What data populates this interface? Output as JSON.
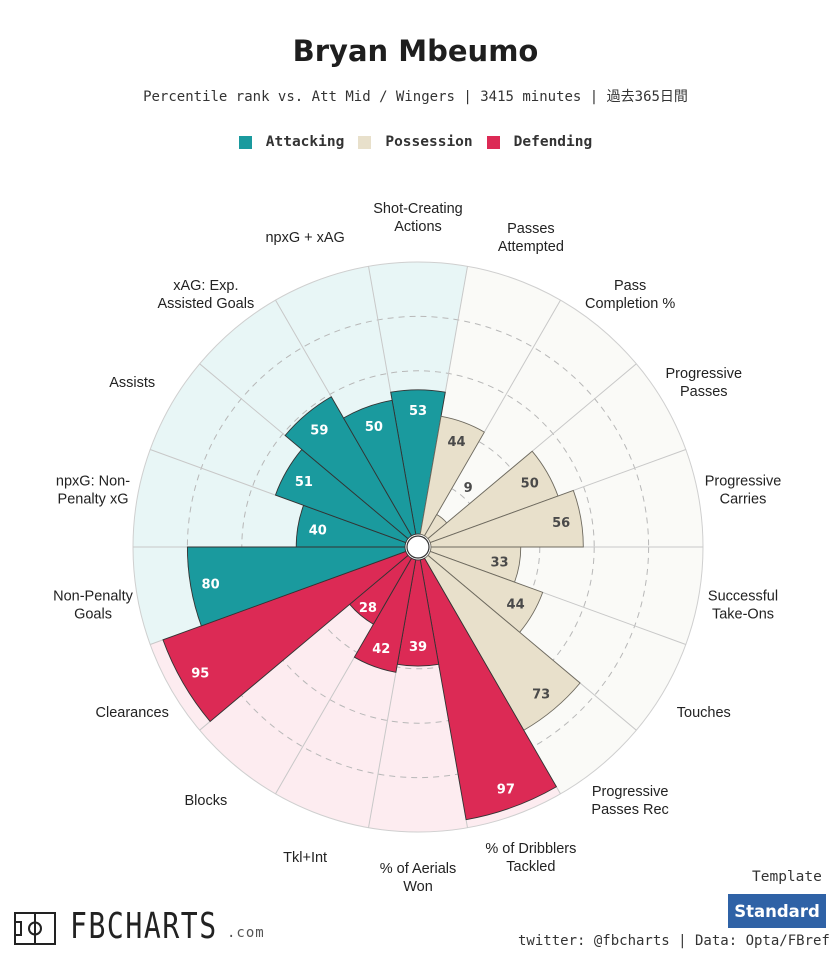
{
  "header": {
    "title": "Bryan Mbeumo",
    "subtitle": "Percentile rank vs. Att Mid / Wingers | 3415 minutes | 過去365日間"
  },
  "legend": [
    {
      "label": "Attacking",
      "color": "#1a9a9e"
    },
    {
      "label": "Possession",
      "color": "#e8e0cb"
    },
    {
      "label": "Defending",
      "color": "#dc2a55"
    }
  ],
  "chart_data": {
    "type": "radar-bar",
    "title": "Bryan Mbeumo",
    "rlim": [
      0,
      100
    ],
    "ring_ticks": [
      20,
      40,
      60,
      80
    ],
    "categories": [
      {
        "name": "Attacking",
        "color": "#1a9a9e",
        "bg": "#e8f6f6"
      },
      {
        "name": "Possession",
        "color": "#e8e0cb",
        "bg": "#fafaf7"
      },
      {
        "name": "Defending",
        "color": "#dc2a55",
        "bg": "#fdecf0"
      }
    ],
    "metrics": [
      {
        "label": "Shot-Creating Actions",
        "value": 53,
        "group": "Attacking"
      },
      {
        "label": "Passes Attempted",
        "value": 44,
        "group": "Possession"
      },
      {
        "label": "Pass Completion %",
        "value": 9,
        "group": "Possession"
      },
      {
        "label": "Progressive Passes",
        "value": 50,
        "group": "Possession"
      },
      {
        "label": "Progressive Carries",
        "value": 56,
        "group": "Possession"
      },
      {
        "label": "Successful Take-Ons",
        "value": 33,
        "group": "Possession"
      },
      {
        "label": "Touches",
        "value": 44,
        "group": "Possession"
      },
      {
        "label": "Progressive Passes Rec",
        "value": 73,
        "group": "Possession"
      },
      {
        "label": "% of Dribblers Tackled",
        "value": 97,
        "group": "Defending"
      },
      {
        "label": "% of Aerials Won",
        "value": 39,
        "group": "Defending"
      },
      {
        "label": "Tkl+Int",
        "value": 42,
        "group": "Defending"
      },
      {
        "label": "Blocks",
        "value": 28,
        "group": "Defending"
      },
      {
        "label": "Clearances",
        "value": 95,
        "group": "Defending"
      },
      {
        "label": "Non-Penalty Goals",
        "value": 80,
        "group": "Attacking"
      },
      {
        "label": "npxG: Non-Penalty xG",
        "value": 40,
        "group": "Attacking"
      },
      {
        "label": "Assists",
        "value": 51,
        "group": "Attacking"
      },
      {
        "label": "xAG: Exp. Assisted Goals",
        "value": 59,
        "group": "Attacking"
      },
      {
        "label": "npxG + xAG",
        "value": 50,
        "group": "Attacking"
      }
    ],
    "label_lines": [
      [
        "Shot-Creating",
        "Actions"
      ],
      [
        "Passes",
        "Attempted"
      ],
      [
        "Pass",
        "Completion %"
      ],
      [
        "Progressive",
        "Passes"
      ],
      [
        "Progressive",
        "Carries"
      ],
      [
        "Successful",
        "Take-Ons"
      ],
      [
        "Touches"
      ],
      [
        "Progressive",
        "Passes Rec"
      ],
      [
        "% of Dribblers",
        "Tackled"
      ],
      [
        "% of Aerials",
        "Won"
      ],
      [
        "Tkl+Int"
      ],
      [
        "Blocks"
      ],
      [
        "Clearances"
      ],
      [
        "Non-Penalty",
        "Goals"
      ],
      [
        "npxG: Non-",
        "Penalty xG"
      ],
      [
        "Assists"
      ],
      [
        "xAG: Exp.",
        "Assisted Goals"
      ],
      [
        "npxG + xAG"
      ]
    ]
  },
  "template": {
    "label": "Template",
    "value": "Standard"
  },
  "branding": {
    "wordmark": "FBCHARTS",
    "suffix": ".com"
  },
  "credit": "twitter: @fbcharts | Data: Opta/FBref"
}
